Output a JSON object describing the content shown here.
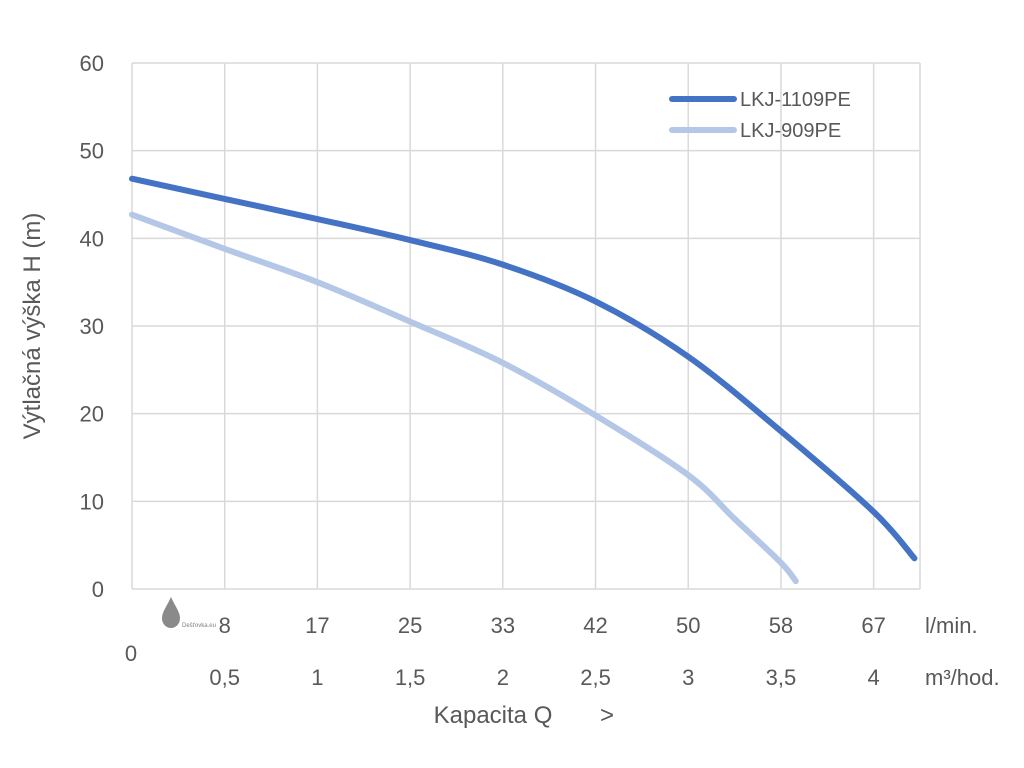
{
  "chart_data": {
    "type": "line",
    "ylabel": "Výtlačná výška H (m)",
    "xlabel": "Kapacita Q",
    "xlabel_arrow": ">",
    "ylim": [
      0,
      60
    ],
    "yticks": [
      0,
      10,
      20,
      30,
      40,
      50,
      60
    ],
    "xlim": [
      0,
      4.25
    ],
    "x_zero_label": "0",
    "x_ticks_lmin": [
      "8",
      "17",
      "25",
      "33",
      "42",
      "50",
      "58",
      "67"
    ],
    "x_ticks_m3h": [
      "0,5",
      "1",
      "1,5",
      "2",
      "2,5",
      "3",
      "3,5",
      "4"
    ],
    "x_tick_positions_m3h": [
      0.5,
      1,
      1.5,
      2,
      2.5,
      3,
      3.5,
      4
    ],
    "unit_lmin": "l/min.",
    "unit_m3h": "m³/hod.",
    "grid": true,
    "legend_position": "top-right",
    "series": [
      {
        "name": "LKJ-1109PE",
        "color": "#4472c4",
        "x": [
          0,
          0.5,
          1,
          1.5,
          2,
          2.5,
          3,
          3.5,
          4,
          4.22
        ],
        "y": [
          46.8,
          44.5,
          42.2,
          39.8,
          37,
          32.8,
          26.5,
          18,
          8.8,
          3.5
        ]
      },
      {
        "name": "LKJ-909PE",
        "color": "#b4c7e7",
        "x": [
          0,
          0.5,
          1,
          1.5,
          2,
          2.5,
          3,
          3.25,
          3.5,
          3.58
        ],
        "y": [
          42.7,
          38.8,
          35,
          30.5,
          25.8,
          19.8,
          13,
          8,
          3,
          0.9
        ]
      }
    ]
  },
  "watermark": {
    "text": "Dešťovka.eu",
    "icon": "water-drop-icon"
  }
}
